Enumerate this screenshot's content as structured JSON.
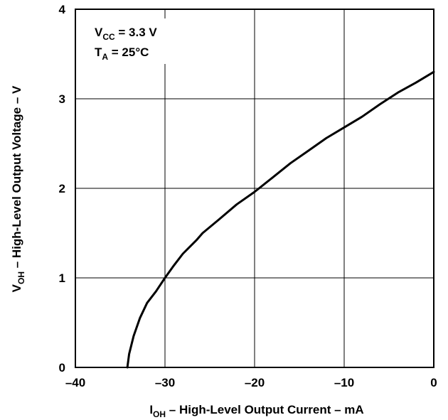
{
  "chart_data": {
    "type": "line",
    "title": "",
    "xlabel": {
      "main": "I",
      "sub": "OH",
      "rest": " – High-Level Output Current – mA"
    },
    "ylabel": {
      "main": "V",
      "sub": "OH",
      "rest": " – High-Level Output Voltage – V"
    },
    "xlim": [
      -40,
      0
    ],
    "ylim": [
      0,
      4
    ],
    "xticks": [
      -40,
      -30,
      -20,
      -10,
      0
    ],
    "xtick_labels": [
      "–40",
      "–30",
      "–20",
      "–10",
      "0"
    ],
    "yticks": [
      0,
      1,
      2,
      3,
      4
    ],
    "ytick_labels": [
      "0",
      "1",
      "2",
      "3",
      "4"
    ],
    "grid": true,
    "annotations": [
      {
        "main": "V",
        "sub": "CC",
        "rest": " = 3.3 V"
      },
      {
        "main": "T",
        "sub": "A",
        "rest": " = 25°C"
      }
    ],
    "series": [
      {
        "x": [
          -34.2,
          -34.0,
          -33.5,
          -32.8,
          -32.0,
          -31.0,
          -30.0,
          -29.0,
          -28.0,
          -27.5,
          -26.5,
          -25.8,
          -24.0,
          -22.0,
          -20.0,
          -18.0,
          -16.0,
          -14.0,
          -12.0,
          -10.0,
          -8.0,
          -6.0,
          -4.0,
          -2.0,
          0.0
        ],
        "y": [
          0.0,
          0.15,
          0.35,
          0.55,
          0.72,
          0.85,
          1.0,
          1.14,
          1.27,
          1.32,
          1.42,
          1.5,
          1.65,
          1.82,
          1.96,
          2.12,
          2.28,
          2.42,
          2.56,
          2.68,
          2.8,
          2.94,
          3.07,
          3.18,
          3.3
        ]
      }
    ]
  }
}
